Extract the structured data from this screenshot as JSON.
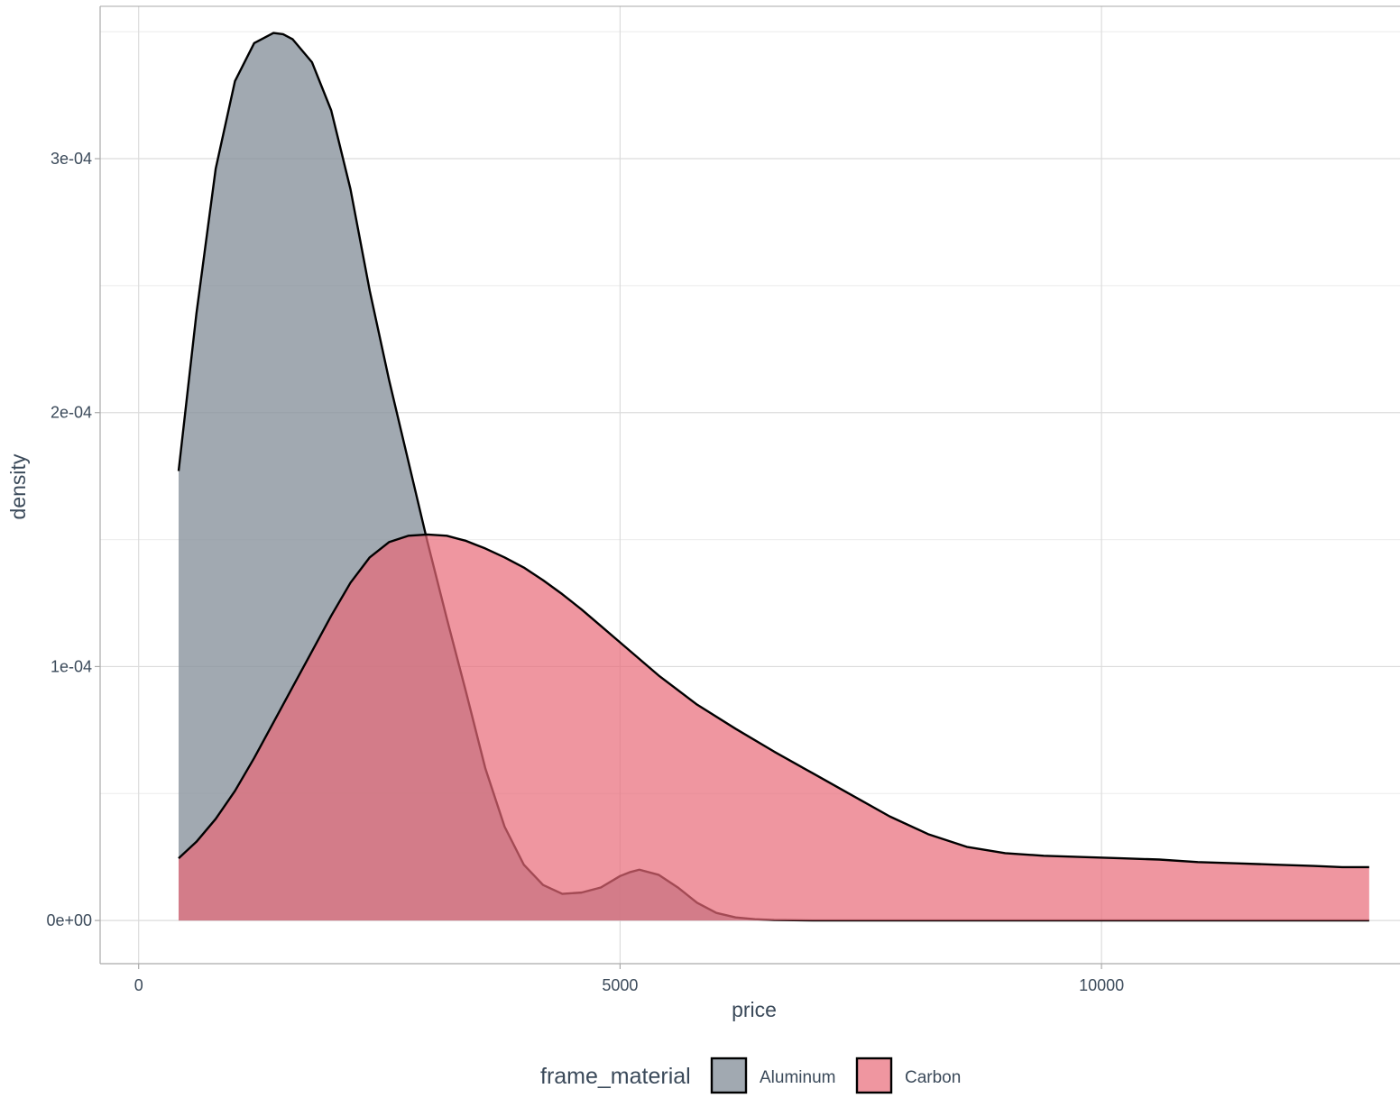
{
  "chart_data": {
    "type": "area",
    "subtype": "density",
    "xlabel": "price",
    "ylabel": "density",
    "xlim": [
      -400,
      13100
    ],
    "ylim": [
      -1.7e-05,
      0.00036
    ],
    "x_ticks": [
      {
        "value": 0,
        "label": "0"
      },
      {
        "value": 5000,
        "label": "5000"
      },
      {
        "value": 10000,
        "label": "10000"
      }
    ],
    "y_ticks": [
      {
        "value": 0,
        "label": "0e+00"
      },
      {
        "value": 0.0001,
        "label": "1e-04"
      },
      {
        "value": 0.0002,
        "label": "2e-04"
      },
      {
        "value": 0.0003,
        "label": "3e-04"
      }
    ],
    "grid": true,
    "legend": {
      "title": "frame_material",
      "position": "bottom",
      "entries": [
        {
          "label": "Aluminum",
          "color": "#8a949e"
        },
        {
          "label": "Carbon",
          "color": "#e86a78"
        }
      ]
    },
    "series": [
      {
        "name": "Aluminum",
        "color": "#8a949e",
        "opacity": 0.8,
        "x": [
          415,
          600,
          800,
          1000,
          1200,
          1400,
          1500,
          1600,
          1800,
          2000,
          2200,
          2400,
          2600,
          2800,
          3000,
          3200,
          3400,
          3600,
          3800,
          4000,
          4200,
          4400,
          4600,
          4800,
          5000,
          5100,
          5200,
          5400,
          5600,
          5800,
          6000,
          6200,
          6400,
          6600,
          6800,
          7000,
          7200,
          7500,
          8000,
          9000,
          10000,
          11000,
          12000,
          12780
        ],
        "y": [
          0.000177,
          0.000239,
          0.000296,
          0.0003305,
          0.0003455,
          0.0003495,
          0.000349,
          0.000347,
          0.000338,
          0.000319,
          0.000288,
          0.000248,
          0.000213,
          0.000181,
          0.000149,
          0.000119,
          9e-05,
          6e-05,
          3.7e-05,
          2.2e-05,
          1.4e-05,
          1.05e-05,
          1.1e-05,
          1.3e-05,
          1.75e-05,
          1.9e-05,
          2e-05,
          1.8e-05,
          1.3e-05,
          7e-06,
          3e-06,
          1.2e-06,
          5e-07,
          2e-07,
          1e-07,
          0.0,
          0.0,
          0.0,
          0.0,
          0.0,
          0.0,
          0.0,
          0.0,
          0.0
        ]
      },
      {
        "name": "Carbon",
        "color": "#e86a78",
        "opacity": 0.7,
        "x": [
          415,
          600,
          800,
          1000,
          1200,
          1400,
          1600,
          1800,
          2000,
          2200,
          2400,
          2600,
          2800,
          3000,
          3200,
          3400,
          3500,
          3600,
          3800,
          4000,
          4200,
          4400,
          4600,
          4800,
          5000,
          5400,
          5800,
          6200,
          6600,
          7000,
          7400,
          7800,
          8200,
          8600,
          9000,
          9400,
          9800,
          10200,
          10600,
          11000,
          11400,
          11800,
          12200,
          12500,
          12780
        ],
        "y": [
          2.45e-05,
          3.1e-05,
          4e-05,
          5.1e-05,
          6.4e-05,
          7.8e-05,
          9.2e-05,
          0.000106,
          0.00012,
          0.000133,
          0.000143,
          0.000149,
          0.0001515,
          0.000152,
          0.0001515,
          0.0001495,
          0.000148,
          0.0001465,
          0.000143,
          0.000139,
          0.000134,
          0.0001285,
          0.0001225,
          0.000116,
          0.0001095,
          9.65e-05,
          8.5e-05,
          7.55e-05,
          6.65e-05,
          5.8e-05,
          4.95e-05,
          4.1e-05,
          3.4e-05,
          2.9e-05,
          2.65e-05,
          2.55e-05,
          2.5e-05,
          2.45e-05,
          2.4e-05,
          2.3e-05,
          2.25e-05,
          2.2e-05,
          2.15e-05,
          2.1e-05,
          2.1e-05
        ]
      }
    ]
  }
}
